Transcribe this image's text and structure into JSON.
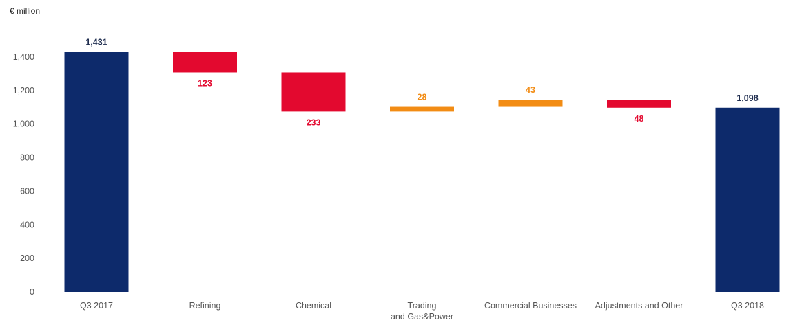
{
  "chart_data": {
    "type": "waterfall",
    "unit_label": "€ million",
    "ylim": [
      0,
      1500
    ],
    "yticks": [
      0,
      200,
      400,
      600,
      800,
      1000,
      1200,
      1400
    ],
    "ytick_labels": [
      "0",
      "200",
      "400",
      "600",
      "800",
      "1,000",
      "1,200",
      "1,400"
    ],
    "grid": false,
    "legend": "none",
    "colors": {
      "total": "#0d2a6b",
      "decrease": "#e3092f",
      "increase": "#f28c14",
      "total_label": "#1f2d4f"
    },
    "bars": [
      {
        "category": [
          "Q3 2017"
        ],
        "kind": "total",
        "start": 0,
        "end": 1431,
        "label": "1,431",
        "label_position": "top"
      },
      {
        "category": [
          "Refining"
        ],
        "kind": "decrease",
        "start": 1431,
        "end": 1308,
        "label": "123",
        "label_position": "bottom"
      },
      {
        "category": [
          "Chemical"
        ],
        "kind": "decrease",
        "start": 1308,
        "end": 1075,
        "label": "233",
        "label_position": "bottom"
      },
      {
        "category": [
          "Trading",
          "and Gas&Power"
        ],
        "kind": "increase",
        "start": 1075,
        "end": 1103,
        "label": "28",
        "label_position": "top"
      },
      {
        "category": [
          "Commercial Businesses"
        ],
        "kind": "increase",
        "start": 1103,
        "end": 1146,
        "label": "43",
        "label_position": "top"
      },
      {
        "category": [
          "Adjustments and Other"
        ],
        "kind": "decrease",
        "start": 1146,
        "end": 1098,
        "label": "48",
        "label_position": "bottom"
      },
      {
        "category": [
          "Q3 2018"
        ],
        "kind": "total",
        "start": 0,
        "end": 1098,
        "label": "1,098",
        "label_position": "top"
      }
    ]
  }
}
